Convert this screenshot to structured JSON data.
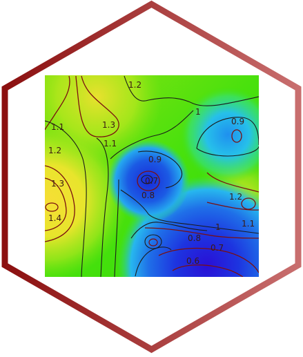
{
  "logo": {
    "frame_gradient": [
      "#8b0f0f",
      "#c86e6e"
    ],
    "plot_colors": {
      "yellow": "#f4e032",
      "green": "#3ee20b",
      "light_green": "#86ec12",
      "cyan": "#25b8ef",
      "blue": "#1b4ae6",
      "violet": "#2a12d6",
      "contour_dark": "#7a1010",
      "contour_black": "#1a1a1a"
    },
    "contour_labels": [
      "1.2",
      "1.1",
      "1.3",
      "1.2",
      "1.1",
      "1.3",
      "1.4",
      "1",
      "0.9",
      "0.9",
      "0.7",
      "0.8",
      "1.2",
      "1.1",
      "1",
      "0.8",
      "0.7",
      "0.6"
    ]
  }
}
